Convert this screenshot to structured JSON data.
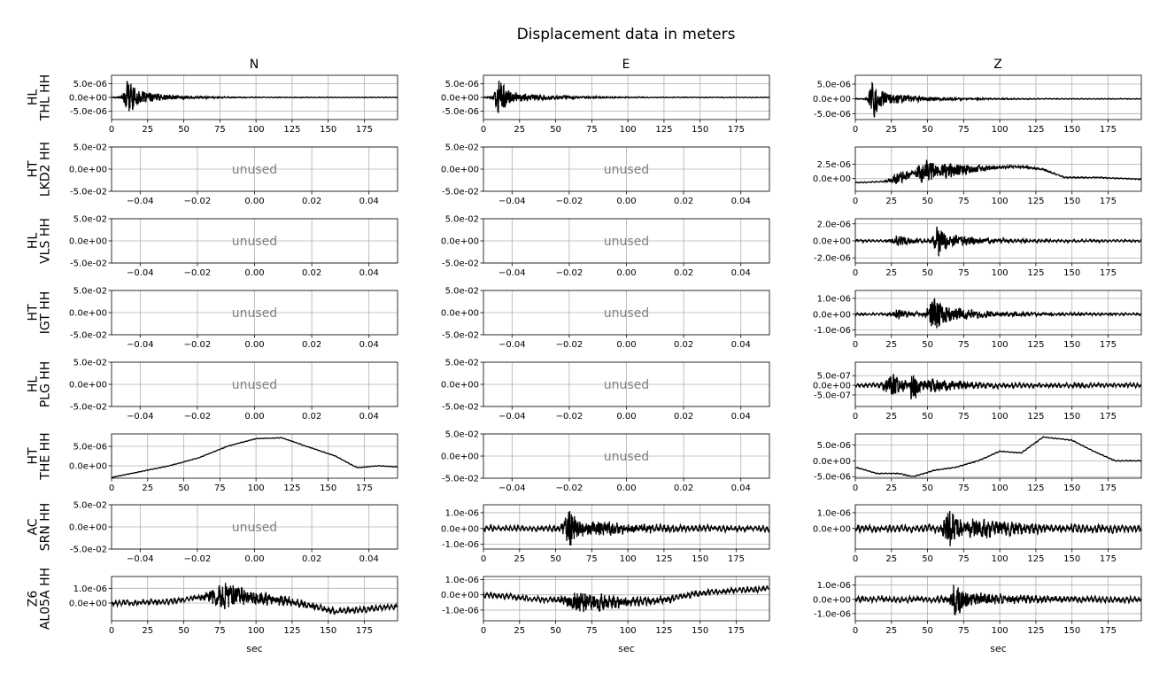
{
  "figure": {
    "title": "Displacement data in meters",
    "columns": [
      "N",
      "E",
      "Z"
    ],
    "xlabel": "sec",
    "unused_label": "unused"
  },
  "chart_data": {
    "type": "line",
    "title": "Displacement data in meters",
    "grid": true,
    "line_color": "#000000",
    "unused_color": "#808080",
    "x_ticks_time": [
      0,
      25,
      50,
      75,
      100,
      125,
      150,
      175
    ],
    "x_tick_labels_time": [
      "0",
      "25",
      "50",
      "75",
      "100",
      "125",
      "150",
      "175"
    ],
    "x_ticks_unused": [
      -0.04,
      -0.02,
      0.0,
      0.02,
      0.04
    ],
    "x_tick_labels_unused": [
      "−0.04",
      "−0.02",
      "0.00",
      "0.02",
      "0.04"
    ],
    "y_ticks_unused": [
      0.05,
      0.0,
      -0.05
    ],
    "y_tick_labels_unused": [
      "5.0e-02",
      "0.0e+00",
      "-5.0e-02"
    ],
    "rows": [
      {
        "network": "HL",
        "station_line": "THL HH",
        "panels": [
          {
            "component": "N",
            "used": true,
            "xlim": [
              0,
              198
            ],
            "ylim": [
              -8e-06,
              8e-06
            ],
            "yticks": [
              5e-06,
              0,
              -5e-06
            ],
            "ytick_labels": [
              "5.0e-06",
              "0.0e+00",
              "-5.0e-06"
            ],
            "shape": {
              "kind": "burst",
              "centers": [
                [
                  12,
                  8e-06,
                  6
                ],
                [
                  20,
                  2.5e-06,
                  20
                ]
              ],
              "noise": 1.5e-07,
              "drift": []
            }
          },
          {
            "component": "E",
            "used": true,
            "xlim": [
              0,
              198
            ],
            "ylim": [
              -8e-06,
              8e-06
            ],
            "yticks": [
              5e-06,
              0,
              -5e-06
            ],
            "ytick_labels": [
              "5.0e-06",
              "0.0e+00",
              "-5.0e-06"
            ],
            "shape": {
              "kind": "burst",
              "centers": [
                [
                  11,
                  8e-06,
                  6
                ],
                [
                  22,
                  2e-06,
                  25
                ]
              ],
              "noise": 1.5e-07,
              "drift": []
            }
          },
          {
            "component": "Z",
            "used": true,
            "xlim": [
              0,
              198
            ],
            "ylim": [
              -7e-06,
              8e-06
            ],
            "yticks": [
              5e-06,
              0,
              -5e-06
            ],
            "ytick_labels": [
              "5.0e-06",
              "0.0e+00",
              "-5.0e-06"
            ],
            "shape": {
              "kind": "burst",
              "centers": [
                [
                  13,
                  7e-06,
                  7
                ],
                [
                  25,
                  2e-06,
                  25
                ]
              ],
              "noise": 1.5e-07,
              "drift": []
            }
          }
        ]
      },
      {
        "network": "HT",
        "station_line": "LKD2 HH",
        "panels": [
          {
            "component": "N",
            "used": false
          },
          {
            "component": "E",
            "used": false
          },
          {
            "component": "Z",
            "used": true,
            "xlim": [
              0,
              198
            ],
            "ylim": [
              -2.2e-06,
              5.5e-06
            ],
            "yticks": [
              2.5e-06,
              0
            ],
            "ytick_labels": [
              "2.5e-06",
              "0.0e+00"
            ],
            "shape": {
              "kind": "burst",
              "centers": [
                [
                  30,
                  1.2e-06,
                  12
                ],
                [
                  48,
                  3e-06,
                  10
                ],
                [
                  65,
                  1.5e-06,
                  20
                ]
              ],
              "noise": 1e-07,
              "drift": [
                [
                  0,
                  -7e-07
                ],
                [
                  20,
                  -5e-07
                ],
                [
                  45,
                  1.2e-06
                ],
                [
                  70,
                  1.4e-06
                ],
                [
                  100,
                  2e-06
                ],
                [
                  115,
                  2.1e-06
                ],
                [
                  130,
                  1.6e-06
                ],
                [
                  145,
                  2e-07
                ],
                [
                  170,
                  2e-07
                ],
                [
                  198,
                  -1e-07
                ]
              ]
            }
          }
        ]
      },
      {
        "network": "HL",
        "station_line": "VLS HH",
        "panels": [
          {
            "component": "N",
            "used": false
          },
          {
            "component": "E",
            "used": false
          },
          {
            "component": "Z",
            "used": true,
            "xlim": [
              0,
              198
            ],
            "ylim": [
              -2.6e-06,
              2.6e-06
            ],
            "yticks": [
              2e-06,
              0,
              -2e-06
            ],
            "ytick_labels": [
              "2.0e-06",
              "0.0e+00",
              "-2.0e-06"
            ],
            "shape": {
              "kind": "burst",
              "centers": [
                [
                  30,
                  6e-07,
                  10
                ],
                [
                  57,
                  2.2e-06,
                  6
                ],
                [
                  70,
                  7e-07,
                  20
                ]
              ],
              "noise": 1.5e-07,
              "drift": []
            }
          }
        ]
      },
      {
        "network": "HT",
        "station_line": "IGT HH",
        "panels": [
          {
            "component": "N",
            "used": false
          },
          {
            "component": "E",
            "used": false
          },
          {
            "component": "Z",
            "used": true,
            "xlim": [
              0,
              198
            ],
            "ylim": [
              -1.3e-06,
              1.5e-06
            ],
            "yticks": [
              1e-06,
              0,
              -1e-06
            ],
            "ytick_labels": [
              "1.0e-06",
              "0.0e+00",
              "-1.0e-06"
            ],
            "shape": {
              "kind": "burst",
              "centers": [
                [
                  30,
                  3e-07,
                  10
                ],
                [
                  55,
                  1.2e-06,
                  10
                ],
                [
                  70,
                  4e-07,
                  25
                ]
              ],
              "noise": 8e-08,
              "drift": []
            }
          }
        ]
      },
      {
        "network": "HL",
        "station_line": "PLG HH",
        "panels": [
          {
            "component": "N",
            "used": false
          },
          {
            "component": "E",
            "used": false
          },
          {
            "component": "Z",
            "used": true,
            "xlim": [
              0,
              198
            ],
            "ylim": [
              -1.1e-06,
              1.2e-06
            ],
            "yticks": [
              5e-07,
              0,
              -5e-07
            ],
            "ytick_labels": [
              "5.0e-07",
              "0.0e+00",
              "-5.0e-07"
            ],
            "shape": {
              "kind": "burst",
              "centers": [
                [
                  25,
                  6e-07,
                  10
                ],
                [
                  40,
                  1e-06,
                  5
                ],
                [
                  55,
                  3e-07,
                  20
                ]
              ],
              "noise": 1.2e-07,
              "drift": []
            }
          }
        ]
      },
      {
        "network": "HT",
        "station_line": "THE HH",
        "panels": [
          {
            "component": "N",
            "used": true,
            "xlim": [
              0,
              198
            ],
            "ylim": [
              -3.2e-06,
              8.2e-06
            ],
            "yticks": [
              5e-06,
              0
            ],
            "ytick_labels": [
              "5.0e-06",
              "0.0e+00"
            ],
            "shape": {
              "kind": "smooth",
              "centers": [],
              "noise": 8e-08,
              "drift": [
                [
                  0,
                  -3e-06
                ],
                [
                  20,
                  -1.5e-06
                ],
                [
                  40,
                  0
                ],
                [
                  60,
                  2e-06
                ],
                [
                  80,
                  5e-06
                ],
                [
                  100,
                  7e-06
                ],
                [
                  118,
                  7.2e-06
                ],
                [
                  135,
                  5e-06
                ],
                [
                  155,
                  2.5e-06
                ],
                [
                  170,
                  -5e-07
                ],
                [
                  185,
                  0
                ],
                [
                  198,
                  -3e-07
                ]
              ]
            }
          },
          {
            "component": "E",
            "used": false
          },
          {
            "component": "Z",
            "used": true,
            "xlim": [
              0,
              198
            ],
            "ylim": [
              -5.5e-06,
              8.5e-06
            ],
            "yticks": [
              5e-06,
              0,
              -5e-06
            ],
            "ytick_labels": [
              "5.0e-06",
              "0.0e+00",
              "-5.0e-06"
            ],
            "shape": {
              "kind": "smooth",
              "centers": [],
              "noise": 1.5e-07,
              "drift": [
                [
                  0,
                  -2e-06
                ],
                [
                  15,
                  -4e-06
                ],
                [
                  30,
                  -4e-06
                ],
                [
                  40,
                  -5e-06
                ],
                [
                  55,
                  -3e-06
                ],
                [
                  70,
                  -2e-06
                ],
                [
                  85,
                  0
                ],
                [
                  100,
                  3e-06
                ],
                [
                  115,
                  2.5e-06
                ],
                [
                  130,
                  7.5e-06
                ],
                [
                  150,
                  6.5e-06
                ],
                [
                  165,
                  3e-06
                ],
                [
                  180,
                  0
                ],
                [
                  198,
                  0
                ]
              ]
            }
          }
        ]
      },
      {
        "network": "AC",
        "station_line": "SRN HH",
        "panels": [
          {
            "component": "N",
            "used": false
          },
          {
            "component": "E",
            "used": true,
            "xlim": [
              0,
              198
            ],
            "ylim": [
              -1.3e-06,
              1.5e-06
            ],
            "yticks": [
              1e-06,
              0,
              -1e-06
            ],
            "ytick_labels": [
              "1.0e-06",
              "0.0e+00",
              "-1.0e-06"
            ],
            "shape": {
              "kind": "burst",
              "centers": [
                [
                  60,
                  1.2e-06,
                  8
                ],
                [
                  80,
                  4e-07,
                  30
                ]
              ],
              "noise": 2e-07,
              "drift": []
            }
          },
          {
            "component": "Z",
            "used": true,
            "xlim": [
              0,
              198
            ],
            "ylim": [
              -1.3e-06,
              1.5e-06
            ],
            "yticks": [
              1e-06,
              0
            ],
            "ytick_labels": [
              "1.0e-06",
              "0.0e+00"
            ],
            "shape": {
              "kind": "burst",
              "centers": [
                [
                  65,
                  1.2e-06,
                  8
                ],
                [
                  85,
                  5e-07,
                  30
                ]
              ],
              "noise": 2.5e-07,
              "drift": []
            }
          }
        ]
      },
      {
        "network": "Z6",
        "station_line": "AL05A HH",
        "panels": [
          {
            "component": "N",
            "used": true,
            "xlim": [
              0,
              198
            ],
            "ylim": [
              -1.2e-06,
              1.8e-06
            ],
            "yticks": [
              1e-06,
              0
            ],
            "ytick_labels": [
              "1.0e-06",
              "0.0e+00"
            ],
            "shape": {
              "kind": "burst",
              "centers": [
                [
                  80,
                  9e-07,
                  25
                ]
              ],
              "noise": 2e-07,
              "drift": [
                [
                  0,
                  0
                ],
                [
                  40,
                  1e-07
                ],
                [
                  70,
                  5e-07
                ],
                [
                  100,
                  4e-07
                ],
                [
                  130,
                  0
                ],
                [
                  155,
                  -6e-07
                ],
                [
                  180,
                  -4e-07
                ],
                [
                  198,
                  -2e-07
                ]
              ]
            }
          },
          {
            "component": "E",
            "used": true,
            "xlim": [
              0,
              198
            ],
            "ylim": [
              -1.7e-06,
              1.2e-06
            ],
            "yticks": [
              1e-06,
              0,
              -1e-06
            ],
            "ytick_labels": [
              "1.0e-06",
              "0.0e+00",
              "-1.0e-06"
            ],
            "shape": {
              "kind": "burst",
              "centers": [
                [
                  70,
                  7e-07,
                  25
                ]
              ],
              "noise": 2e-07,
              "drift": [
                [
                  0,
                  0
                ],
                [
                  40,
                  -3e-07
                ],
                [
                  80,
                  -5e-07
                ],
                [
                  120,
                  -4e-07
                ],
                [
                  150,
                  1e-07
                ],
                [
                  175,
                  3e-07
                ],
                [
                  198,
                  4e-07
                ]
              ]
            }
          },
          {
            "component": "Z",
            "used": true,
            "xlim": [
              0,
              198
            ],
            "ylim": [
              -1.5e-06,
              1.6e-06
            ],
            "yticks": [
              1e-06,
              0,
              -1e-06
            ],
            "ytick_labels": [
              "1.0e-06",
              "0.0e+00",
              "-1.0e-06"
            ],
            "shape": {
              "kind": "burst",
              "centers": [
                [
                  70,
                  1.2e-06,
                  8
                ],
                [
                  80,
                  4e-07,
                  30
                ]
              ],
              "noise": 2.2e-07,
              "drift": []
            }
          }
        ]
      }
    ]
  }
}
